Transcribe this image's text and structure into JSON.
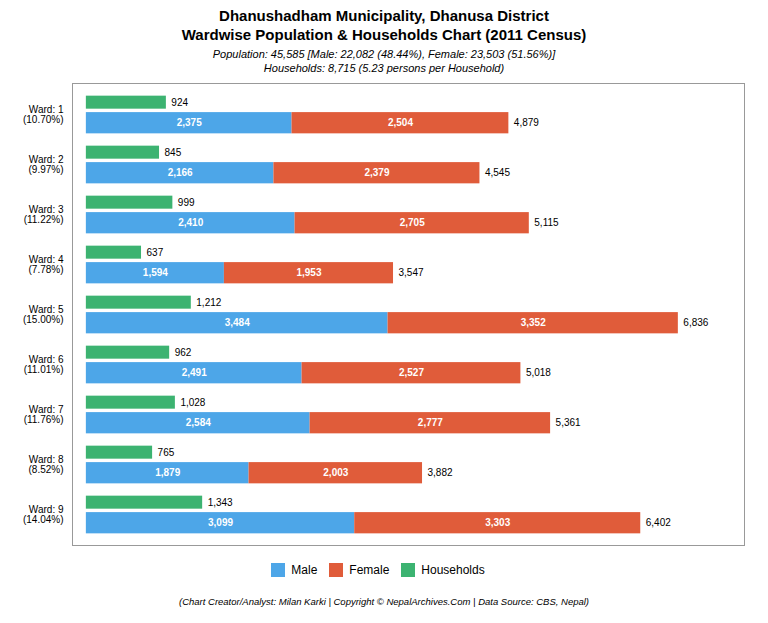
{
  "chart_data": {
    "type": "bar",
    "orientation": "horizontal",
    "stacked": true,
    "title": "Dhanushadham Municipality, Dhanusa District\nWardwise Population & Households Chart (2011 Census)",
    "subtitle": "Population: 45,585 [Male: 22,082 (48.44%), Female: 23,503 (51.56%)]\nHouseholds: 8,715 (5.23 persons per Household)",
    "annotations": [
      "(Chart Creator/Analyst: Milan Karki | Copyright © NepalArchives.Com | Data Source: CBS, Nepal)"
    ],
    "categories": [
      "Ward: 1\n(10.70%)",
      "Ward: 2\n(9.97%)",
      "Ward: 3\n(11.22%)",
      "Ward: 4\n(7.78%)",
      "Ward: 5\n(15.00%)",
      "Ward: 6\n(11.01%)",
      "Ward: 7\n(11.76%)",
      "Ward: 8\n(8.52%)",
      "Ward: 9\n(14.04%)"
    ],
    "series": [
      {
        "name": "Male",
        "color": "#4da6e8",
        "values": [
          2375,
          2166,
          2410,
          1594,
          3484,
          2491,
          2584,
          1879,
          3099
        ]
      },
      {
        "name": "Female",
        "color": "#e05c3a",
        "values": [
          2504,
          2379,
          2705,
          1953,
          3352,
          2527,
          2777,
          2003,
          3303
        ]
      }
    ],
    "households": {
      "name": "Households",
      "color": "#3cb371",
      "values": [
        924,
        845,
        999,
        637,
        1212,
        962,
        1028,
        765,
        1343
      ]
    },
    "totals": [
      4879,
      4545,
      5115,
      3547,
      6836,
      5018,
      5361,
      3882,
      6402
    ],
    "xlim": [
      -160,
      7600
    ],
    "data_labels": true,
    "legend": "bottom",
    "tick_labels": "y",
    "grid": false
  }
}
